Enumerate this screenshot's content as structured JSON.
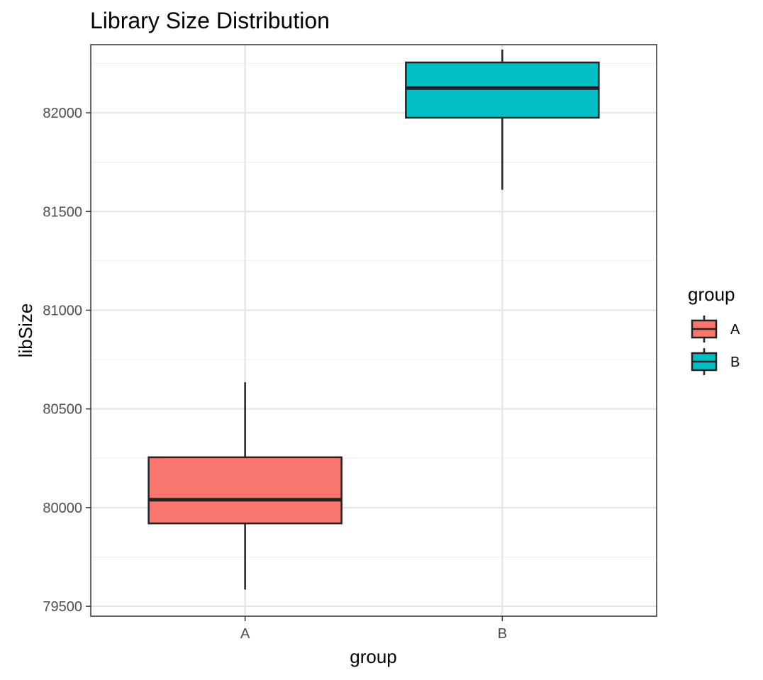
{
  "chart_data": {
    "type": "boxplot",
    "title": "Library Size Distribution",
    "xlabel": "group",
    "ylabel": "libSize",
    "categories": [
      "A",
      "B"
    ],
    "ylim": [
      79450,
      82345
    ],
    "yticks": [
      79500,
      80000,
      80500,
      81000,
      81500,
      82000
    ],
    "grid": true,
    "legend": {
      "title": "group",
      "position": "right",
      "entries": [
        "A",
        "B"
      ]
    },
    "series": [
      {
        "category": "A",
        "min": 79585,
        "q1": 79920,
        "median": 80040,
        "q3": 80255,
        "max": 80635,
        "color": "#F8766D"
      },
      {
        "category": "B",
        "min": 81610,
        "q1": 81975,
        "median": 82125,
        "q3": 82255,
        "max": 82320,
        "color": "#00BFC4"
      }
    ],
    "colors": {
      "box_outline": "#222222",
      "grid_major": "#e5e5e5",
      "grid_minor": "#f0f0f0",
      "panel_border": "#333333"
    }
  }
}
